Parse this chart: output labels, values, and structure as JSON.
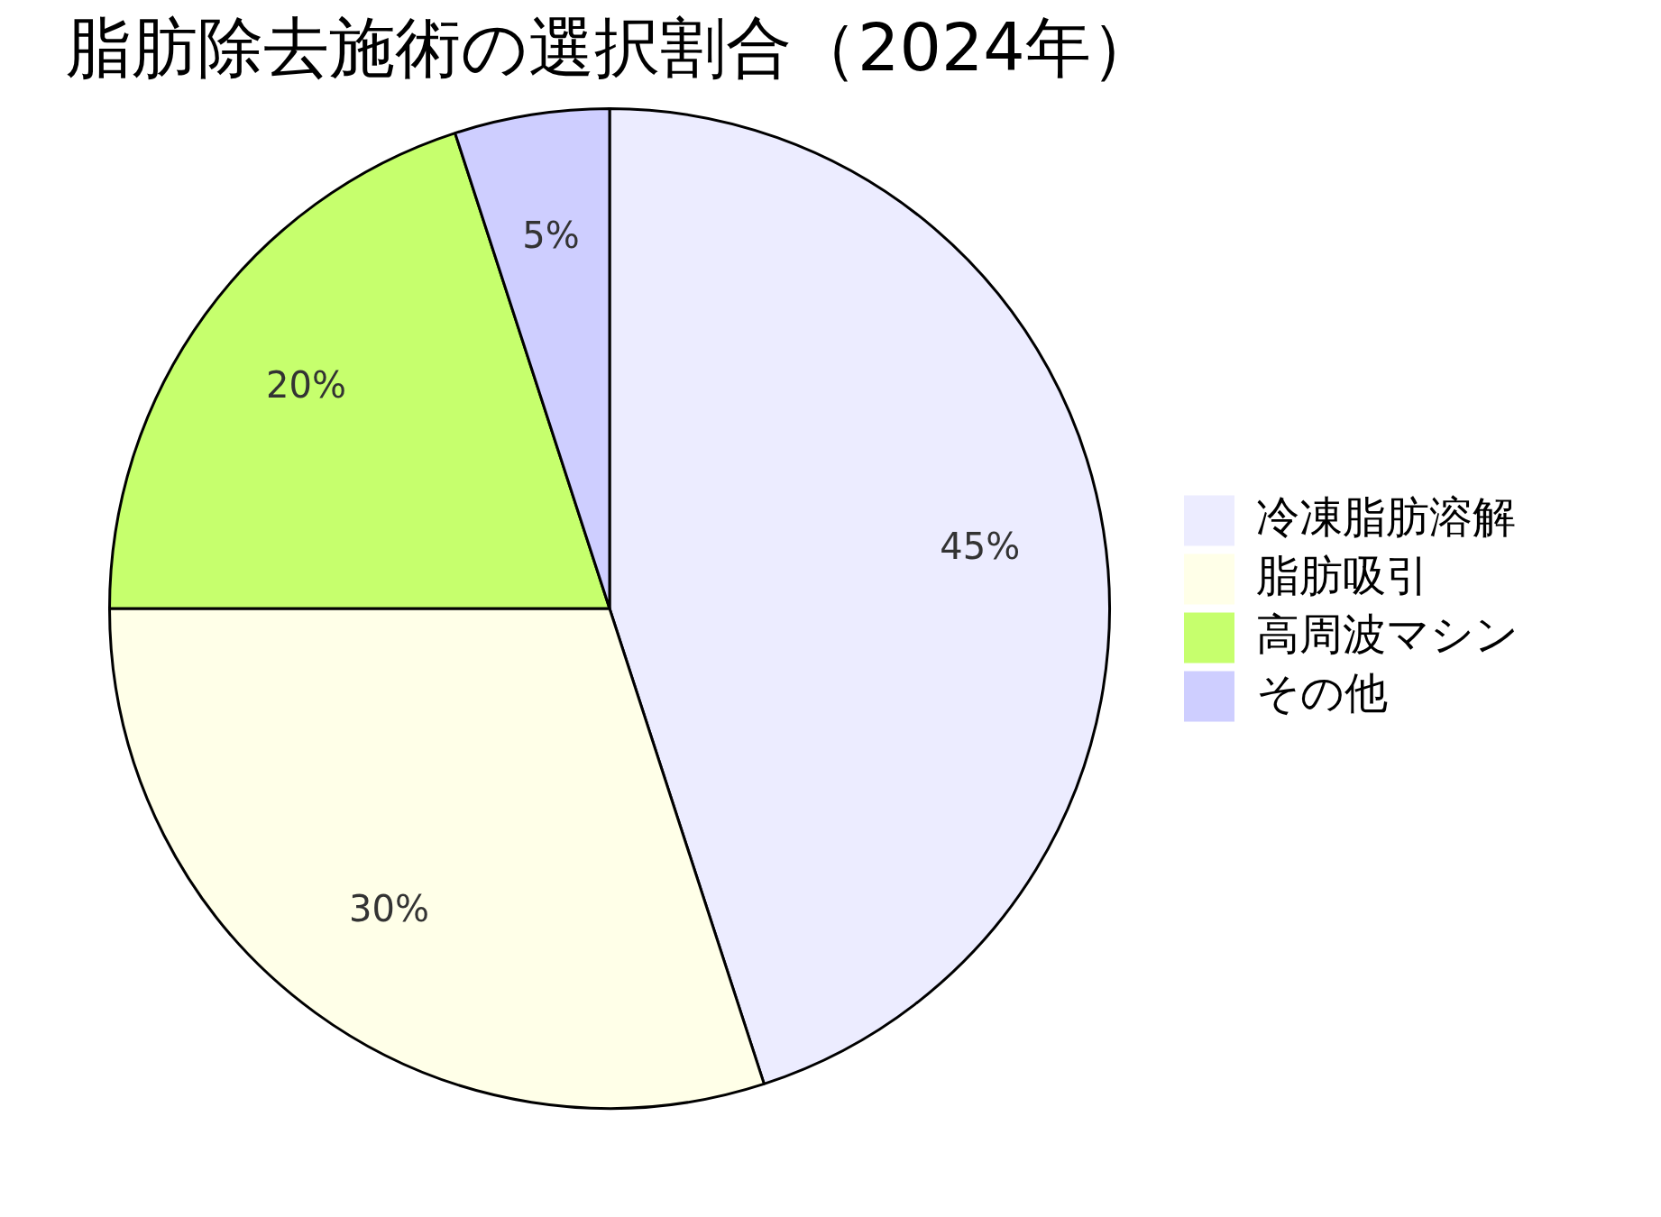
{
  "chart_data": {
    "type": "pie",
    "title": "脂肪除去施術の選択割合（2024年）",
    "categories": [
      "冷凍脂肪溶解",
      "脂肪吸引",
      "高周波マシン",
      "その他"
    ],
    "values": [
      45,
      30,
      20,
      5
    ],
    "colors": [
      "#ececff",
      "#ffffe8",
      "#c6ff6d",
      "#ceceff"
    ],
    "value_labels": [
      "45%",
      "30%",
      "20%",
      "5%"
    ],
    "legend": "right"
  }
}
